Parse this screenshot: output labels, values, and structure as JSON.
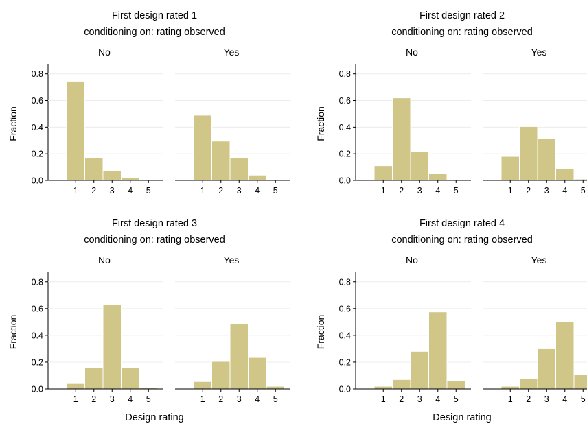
{
  "colors": {
    "bar_fill": "#cfc687",
    "bar_stroke": "#ffffff",
    "grid": "#ececec",
    "axis": "#000000"
  },
  "chart_data": [
    {
      "type": "bar",
      "title": "First design rated 1",
      "subtitle": "conditioning on: rating observed",
      "ylabel": "Fraction",
      "xlabel": "",
      "ylim": [
        0,
        0.85
      ],
      "yticks": [
        "0.0",
        "0.2",
        "0.4",
        "0.6",
        "0.8"
      ],
      "grid": true,
      "panels": [
        {
          "label": "No",
          "categories": [
            "1",
            "2",
            "3",
            "4",
            "5"
          ],
          "values": [
            0.745,
            0.17,
            0.07,
            0.02,
            0.002
          ]
        },
        {
          "label": "Yes",
          "categories": [
            "1",
            "2",
            "3",
            "4",
            "5"
          ],
          "values": [
            0.49,
            0.295,
            0.17,
            0.04,
            0.005
          ]
        }
      ]
    },
    {
      "type": "bar",
      "title": "First design rated 2",
      "subtitle": "conditioning on: rating observed",
      "ylabel": "Fraction",
      "xlabel": "",
      "ylim": [
        0,
        0.85
      ],
      "yticks": [
        "0.0",
        "0.2",
        "0.4",
        "0.6",
        "0.8"
      ],
      "grid": true,
      "panels": [
        {
          "label": "No",
          "categories": [
            "1",
            "2",
            "3",
            "4",
            "5"
          ],
          "values": [
            0.11,
            0.62,
            0.215,
            0.05,
            0.003
          ]
        },
        {
          "label": "Yes",
          "categories": [
            "1",
            "2",
            "3",
            "4",
            "5"
          ],
          "values": [
            0.18,
            0.405,
            0.315,
            0.09,
            0.01
          ]
        }
      ]
    },
    {
      "type": "bar",
      "title": "First design rated 3",
      "subtitle": "conditioning on: rating observed",
      "ylabel": "Fraction",
      "xlabel": "Design rating",
      "ylim": [
        0,
        0.85
      ],
      "yticks": [
        "0.0",
        "0.2",
        "0.4",
        "0.6",
        "0.8"
      ],
      "grid": true,
      "panels": [
        {
          "label": "No",
          "categories": [
            "1",
            "2",
            "3",
            "4",
            "5"
          ],
          "values": [
            0.04,
            0.16,
            0.63,
            0.16,
            0.01
          ]
        },
        {
          "label": "Yes",
          "categories": [
            "1",
            "2",
            "3",
            "4",
            "5"
          ],
          "values": [
            0.055,
            0.205,
            0.485,
            0.235,
            0.02
          ]
        }
      ]
    },
    {
      "type": "bar",
      "title": "First design rated 4",
      "subtitle": "conditioning on: rating observed",
      "ylabel": "Fraction",
      "xlabel": "Design rating",
      "ylim": [
        0,
        0.85
      ],
      "yticks": [
        "0.0",
        "0.2",
        "0.4",
        "0.6",
        "0.8"
      ],
      "grid": true,
      "panels": [
        {
          "label": "No",
          "categories": [
            "1",
            "2",
            "3",
            "4",
            "5"
          ],
          "values": [
            0.02,
            0.07,
            0.28,
            0.575,
            0.06
          ]
        },
        {
          "label": "Yes",
          "categories": [
            "1",
            "2",
            "3",
            "4",
            "5"
          ],
          "values": [
            0.02,
            0.075,
            0.3,
            0.5,
            0.105
          ]
        }
      ]
    }
  ]
}
